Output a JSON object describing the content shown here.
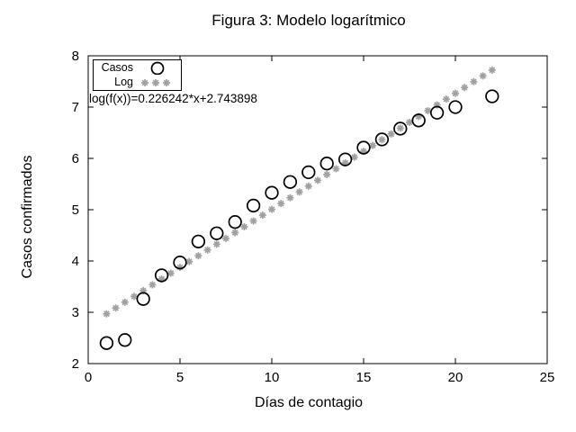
{
  "window": {
    "background": "#ffffff"
  },
  "chart_data": {
    "type": "scatter",
    "title": "Figura 3: Modelo logarítmico",
    "xlabel": "Días de contagio",
    "ylabel": "Casos confirmados",
    "xlim": [
      0,
      25
    ],
    "ylim": [
      2,
      8
    ],
    "xticks": [
      0,
      5,
      10,
      15,
      20,
      25
    ],
    "yticks": [
      2,
      3,
      4,
      5,
      6,
      7,
      8
    ],
    "grid": false,
    "legend_position": "top-left-inside",
    "annotation": "log(f(x))=0.226242*x+2.743898",
    "series": [
      {
        "name": "Casos",
        "type": "points",
        "marker": "open-circle",
        "color": "#000000",
        "points": [
          [
            1,
            2.4
          ],
          [
            2,
            2.46
          ],
          [
            3,
            3.26
          ],
          [
            4,
            3.72
          ],
          [
            5,
            3.97
          ],
          [
            6,
            4.38
          ],
          [
            7,
            4.54
          ],
          [
            8,
            4.76
          ],
          [
            9,
            5.08
          ],
          [
            10,
            5.33
          ],
          [
            11,
            5.54
          ],
          [
            12,
            5.73
          ],
          [
            13,
            5.9
          ],
          [
            14,
            5.98
          ],
          [
            15,
            6.21
          ],
          [
            16,
            6.37
          ],
          [
            17,
            6.58
          ],
          [
            18,
            6.74
          ],
          [
            19,
            6.89
          ],
          [
            20,
            7.0
          ],
          [
            22,
            7.21
          ]
        ]
      },
      {
        "name": "Log",
        "type": "fit-points",
        "marker": "asterisk",
        "color": "#a0a0a0",
        "slope": 0.226242,
        "intercept": 2.743898,
        "x_start": 1,
        "x_end": 22,
        "x_step": 0.5
      }
    ],
    "colors": {
      "axis": "#000000",
      "casos": "#000000",
      "log": "#a0a0a0"
    }
  }
}
